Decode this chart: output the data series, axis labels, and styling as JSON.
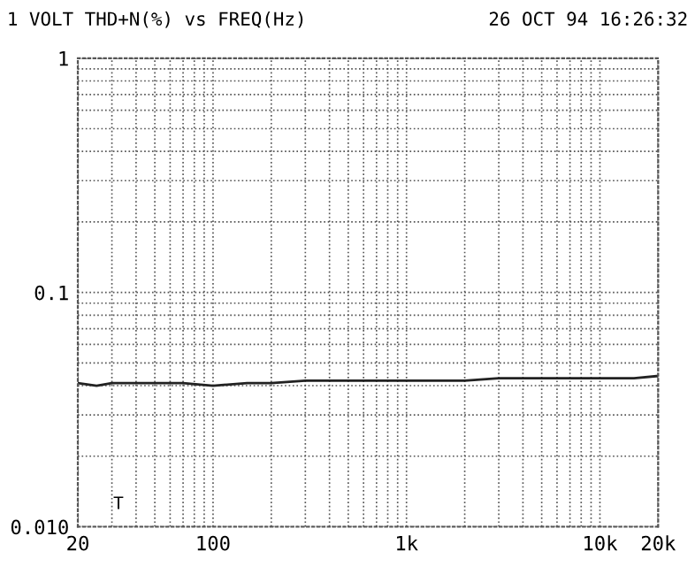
{
  "chart_data": {
    "type": "line",
    "title": "1 VOLT THD+N(%) vs FREQ(Hz)",
    "subtitle": "26 OCT 94 16:26:32",
    "x": [
      20,
      25,
      30,
      40,
      50,
      70,
      100,
      150,
      200,
      300,
      500,
      700,
      1000,
      2000,
      3000,
      5000,
      7000,
      10000,
      15000,
      20000
    ],
    "series": [
      {
        "color": "#222222",
        "values": [
          0.041,
          0.04,
          0.041,
          0.041,
          0.041,
          0.041,
          0.04,
          0.041,
          0.041,
          0.042,
          0.042,
          0.042,
          0.042,
          0.042,
          0.043,
          0.043,
          0.043,
          0.043,
          0.043,
          0.044
        ]
      }
    ],
    "log": "xy",
    "xlim": [
      20,
      20000
    ],
    "ylim": [
      0.01,
      1
    ],
    "xticks": [
      20,
      100,
      {
        "value": 1000,
        "label": "1k"
      },
      {
        "value": 10000,
        "label": "10k"
      },
      {
        "value": 20000,
        "label": "20k"
      }
    ],
    "yticks": [
      {
        "value": 0.01,
        "label": "0.010"
      },
      0.1,
      1
    ],
    "annotations": [
      "T"
    ],
    "grid": true,
    "line_style": "solid",
    "marker": "none",
    "legend": false
  }
}
